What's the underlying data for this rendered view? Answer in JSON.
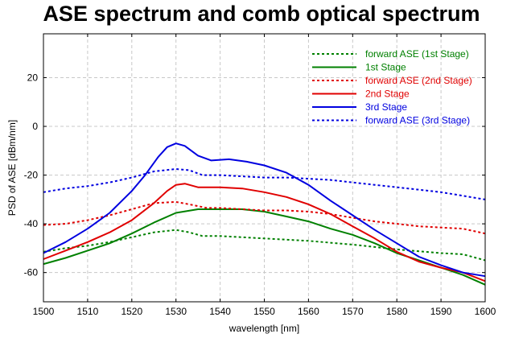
{
  "chart_data": {
    "type": "line",
    "title": "ASE spectrum and comb optical spectrum",
    "xlabel": "wavelength [nm]",
    "ylabel": "PSD of ASE [dBm/nm]",
    "xlim": [
      1500,
      1600
    ],
    "ylim": [
      -72,
      38
    ],
    "xticks": [
      1500,
      1510,
      1520,
      1530,
      1540,
      1550,
      1560,
      1570,
      1580,
      1590,
      1600
    ],
    "yticks": [
      -60,
      -40,
      -20,
      0,
      20
    ],
    "grid": true,
    "legend_position": "top-right",
    "series": [
      {
        "name": "forward ASE (1st Stage)",
        "color": "#008000",
        "dashed": true,
        "x": [
          1500,
          1505,
          1510,
          1515,
          1520,
          1525,
          1530,
          1533,
          1536,
          1540,
          1545,
          1550,
          1560,
          1570,
          1580,
          1590,
          1595,
          1600
        ],
        "y": [
          -51.5,
          -50,
          -49,
          -47.5,
          -45.5,
          -43.5,
          -42.5,
          -43.5,
          -45,
          -45,
          -45.5,
          -46,
          -47,
          -48.5,
          -50.5,
          -52,
          -52.5,
          -55
        ]
      },
      {
        "name": "1st Stage",
        "color": "#008000",
        "dashed": false,
        "x": [
          1500,
          1505,
          1510,
          1515,
          1520,
          1525,
          1530,
          1535,
          1540,
          1545,
          1550,
          1555,
          1560,
          1565,
          1570,
          1575,
          1580,
          1585,
          1590,
          1595,
          1600
        ],
        "y": [
          -56.5,
          -54,
          -51,
          -48,
          -44,
          -39.5,
          -35.5,
          -34,
          -34,
          -34,
          -35,
          -37,
          -39,
          -42,
          -44.5,
          -48,
          -52,
          -55,
          -58,
          -61,
          -65
        ]
      },
      {
        "name": "forward ASE (2nd Stage)",
        "color": "#e00000",
        "dashed": true,
        "x": [
          1500,
          1505,
          1510,
          1515,
          1520,
          1525,
          1530,
          1533,
          1537,
          1540,
          1545,
          1550,
          1555,
          1560,
          1565,
          1570,
          1575,
          1580,
          1585,
          1590,
          1595,
          1600
        ],
        "y": [
          -40.5,
          -40,
          -38.5,
          -36.5,
          -34,
          -31.5,
          -31,
          -32,
          -33.5,
          -33.5,
          -34,
          -34.5,
          -34.5,
          -35,
          -36,
          -37.5,
          -39,
          -40,
          -41,
          -41.5,
          -42,
          -44
        ]
      },
      {
        "name": "2nd Stage",
        "color": "#e00000",
        "dashed": false,
        "x": [
          1500,
          1505,
          1510,
          1515,
          1520,
          1525,
          1528,
          1530,
          1532,
          1535,
          1540,
          1545,
          1550,
          1555,
          1560,
          1565,
          1570,
          1575,
          1580,
          1585,
          1590,
          1595,
          1600
        ],
        "y": [
          -54.5,
          -51,
          -47.5,
          -43.5,
          -38.5,
          -31.5,
          -26.5,
          -24,
          -23.5,
          -25,
          -25,
          -25.5,
          -27,
          -29,
          -32,
          -36,
          -41,
          -46,
          -51.5,
          -55.5,
          -58,
          -60,
          -63.5
        ]
      },
      {
        "name": "3rd Stage",
        "color": "#0000e0",
        "dashed": false,
        "x": [
          1500,
          1505,
          1510,
          1515,
          1520,
          1523,
          1526,
          1528,
          1530,
          1532,
          1535,
          1538,
          1542,
          1546,
          1550,
          1555,
          1560,
          1565,
          1570,
          1575,
          1580,
          1585,
          1590,
          1595,
          1600
        ],
        "y": [
          -52,
          -47.5,
          -42,
          -35.5,
          -26.5,
          -20,
          -12.5,
          -8.5,
          -7,
          -8,
          -12,
          -14,
          -13.5,
          -14.5,
          -16,
          -19,
          -24,
          -30.5,
          -36.5,
          -42.5,
          -48,
          -53.5,
          -57,
          -60,
          -61.5
        ]
      },
      {
        "name": "forward ASE (3rd Stage)",
        "color": "#0000e0",
        "dashed": true,
        "x": [
          1500,
          1505,
          1510,
          1515,
          1520,
          1525,
          1530,
          1533,
          1536,
          1540,
          1545,
          1550,
          1555,
          1560,
          1565,
          1570,
          1575,
          1580,
          1585,
          1590,
          1595,
          1600
        ],
        "y": [
          -27,
          -25.5,
          -24.5,
          -23,
          -21,
          -18.5,
          -17.5,
          -18,
          -20,
          -20,
          -20.5,
          -21,
          -21,
          -21.5,
          -22,
          -23,
          -24,
          -25,
          -26,
          -27,
          -28.5,
          -30
        ]
      }
    ]
  }
}
